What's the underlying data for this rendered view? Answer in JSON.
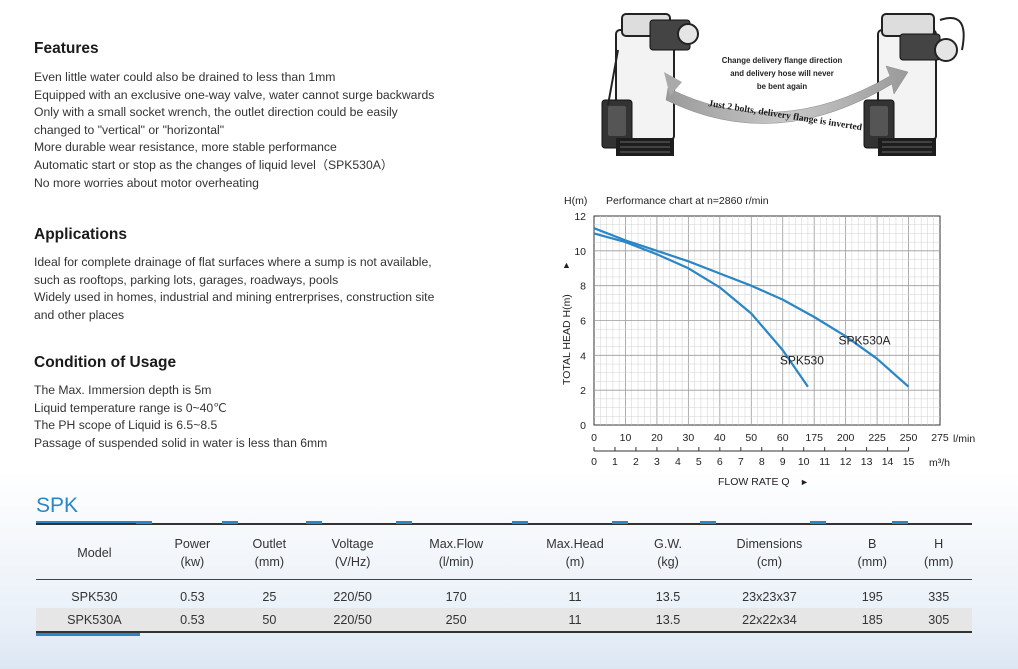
{
  "features": {
    "title": "Features",
    "lines": [
      "Even little water could also be drained to less than 1mm",
      "Equipped with an exclusive one-way valve, water cannot surge backwards",
      "Only with a small socket wrench, the outlet direction could be easily",
      "changed to \"vertical\" or \"horizontal\"",
      "More durable wear resistance, more stable performance",
      "Automatic start or stop as the changes of liquid level（SPK530A）",
      "No more worries about motor overheating"
    ]
  },
  "applications": {
    "title": "Applications",
    "lines": [
      "Ideal for complete drainage of flat surfaces where a sump is not available,",
      "such as rooftops, parking lots, garages, roadways, pools",
      "Widely used in homes, industrial and mining entrerprises, construction site",
      "and other places"
    ]
  },
  "conditions": {
    "title": "Condition of Usage",
    "lines": [
      "The Max. Immersion depth is 5m",
      "Liquid temperature range is 0~40℃",
      "The PH scope of Liquid is 6.5~8.5",
      "Passage of suspended solid in water is less than 6mm"
    ]
  },
  "illustration": {
    "callout_line1": "Change delivery flange direction",
    "callout_line2": "and delivery hose will never",
    "callout_line3": "be bent again",
    "arrow_text": "Just 2 bolts, delivery flange is inverted",
    "accent_color": "#888888"
  },
  "chart_data": {
    "type": "line",
    "title": "Performance chart at n=2860 r/min",
    "y_unit_label": "H(m)",
    "ylabel": "TOTAL HEAD  H(m)",
    "xlabel": "FLOW RATE Q",
    "x_unit_primary": "l/min",
    "x_unit_secondary": "m³/h",
    "xlim": [
      0,
      275
    ],
    "ylim": [
      0,
      12
    ],
    "x_ticks": [
      "0",
      "10",
      "20",
      "30",
      "40",
      "50",
      "60",
      "175",
      "200",
      "225",
      "250",
      "275"
    ],
    "x_ticks_secondary": [
      "0",
      "1",
      "2",
      "3",
      "4",
      "5",
      "6",
      "7",
      "8",
      "9",
      "10",
      "11",
      "12",
      "13",
      "14",
      "15"
    ],
    "y_ticks": [
      "0",
      "2",
      "4",
      "6",
      "8",
      "10",
      "12"
    ],
    "grid": true,
    "line_color": "#2a86c6",
    "series": [
      {
        "name": "SPK530",
        "x": [
          0,
          25,
          50,
          75,
          100,
          125,
          150,
          170
        ],
        "y": [
          11.0,
          10.5,
          9.8,
          9.0,
          7.9,
          6.4,
          4.3,
          2.2
        ]
      },
      {
        "name": "SPK530A",
        "x": [
          0,
          25,
          50,
          75,
          100,
          125,
          150,
          175,
          200,
          225,
          250
        ],
        "y": [
          11.3,
          10.6,
          10.0,
          9.4,
          8.7,
          8.0,
          7.2,
          6.2,
          5.1,
          3.8,
          2.2
        ]
      }
    ]
  },
  "spec_table": {
    "title": "SPK",
    "headers": [
      [
        "Model",
        ""
      ],
      [
        "Power",
        "(kw)"
      ],
      [
        "Outlet",
        "(mm)"
      ],
      [
        "Voltage",
        "(V/Hz)"
      ],
      [
        "Max.Flow",
        "(l/min)"
      ],
      [
        "Max.Head",
        "(m)"
      ],
      [
        "G.W.",
        "(kg)"
      ],
      [
        "Dimensions",
        "(cm)"
      ],
      [
        "B",
        "(mm)"
      ],
      [
        "H",
        "(mm)"
      ]
    ],
    "rows": [
      [
        "SPK530",
        "0.53",
        "25",
        "220/50",
        "170",
        "11",
        "13.5",
        "23x23x37",
        "195",
        "335"
      ],
      [
        "SPK530A",
        "0.53",
        "50",
        "220/50",
        "250",
        "11",
        "13.5",
        "22x22x34",
        "185",
        "305"
      ]
    ]
  }
}
